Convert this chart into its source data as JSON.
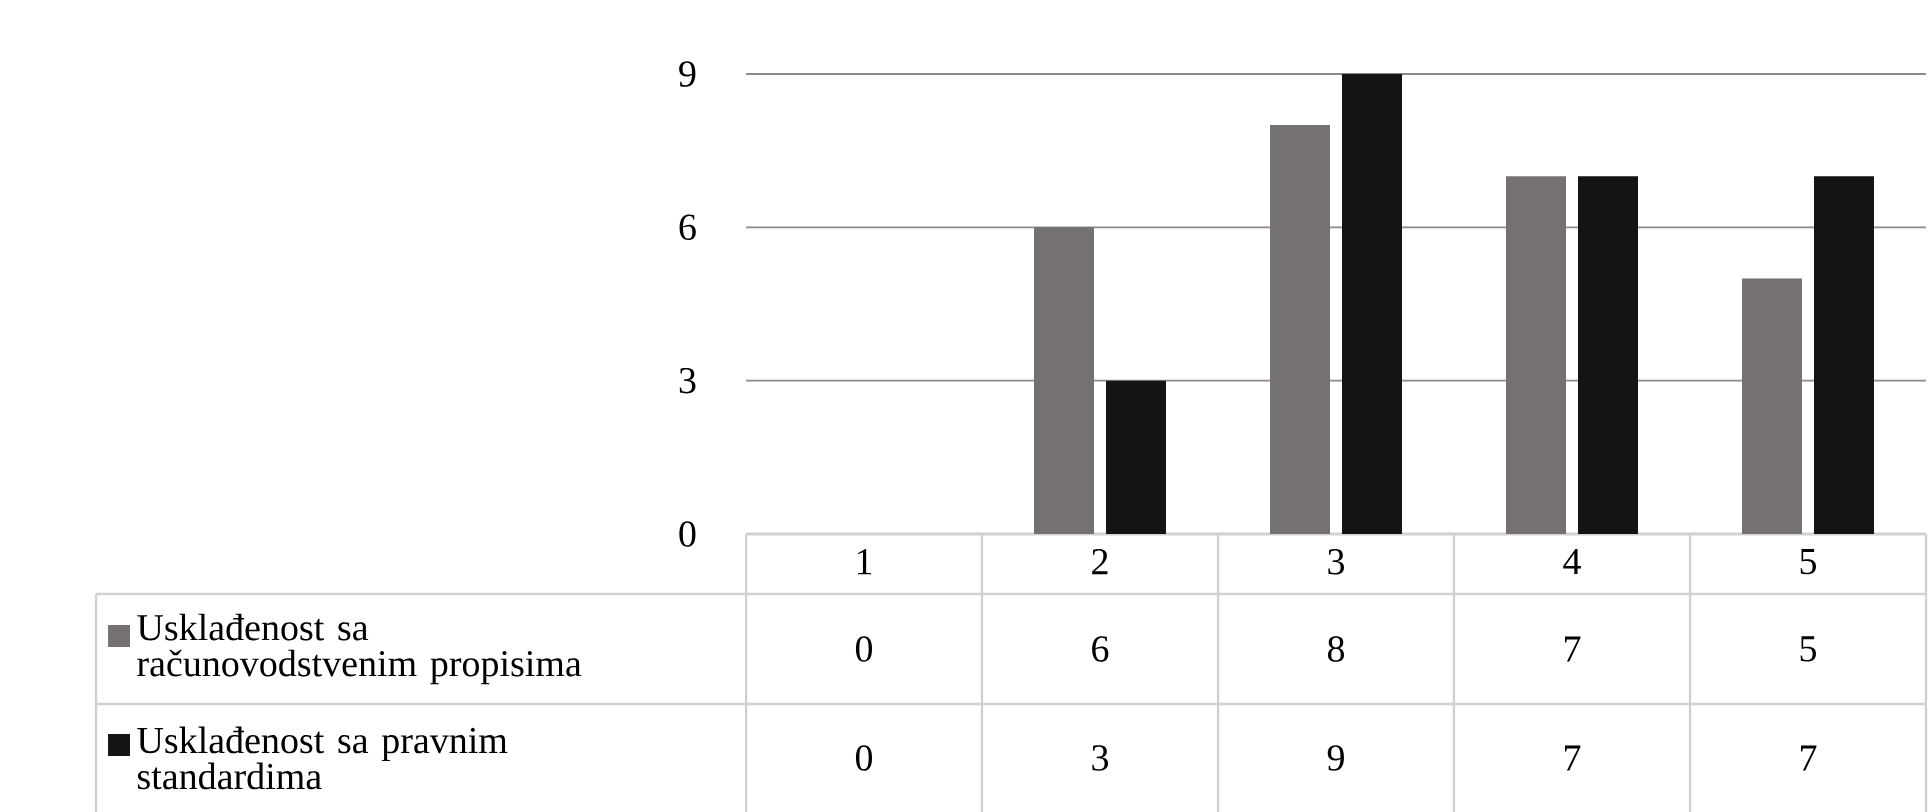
{
  "chart_data": {
    "type": "bar",
    "categories": [
      "1",
      "2",
      "3",
      "4",
      "5"
    ],
    "series": [
      {
        "name": "Usklađenost sa računovodstvenim propisima",
        "color": "#767171",
        "values": [
          0,
          6,
          8,
          7,
          5
        ]
      },
      {
        "name": "Usklađenost sa pravnim standardima",
        "color": "#141414",
        "values": [
          0,
          3,
          9,
          7,
          7
        ]
      }
    ],
    "ylim": [
      0,
      9
    ],
    "yticks": [
      0,
      3,
      6,
      9
    ],
    "grid": "y",
    "legend": "bottom",
    "data_labels": true
  }
}
